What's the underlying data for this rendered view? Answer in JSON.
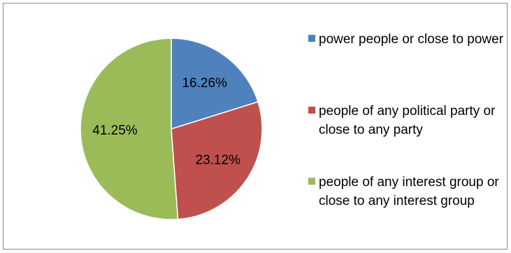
{
  "chart_data": {
    "type": "pie",
    "title": "",
    "slices": [
      {
        "label": "power people or close to power",
        "value": 16.26,
        "display": "16.26%",
        "color": "#4f81bd"
      },
      {
        "label": "people of any political party or close to any party",
        "value": 23.12,
        "display": "23.12%",
        "color": "#c0504d"
      },
      {
        "label": "people of any interest group or close to any interest group",
        "value": 41.25,
        "display": "41.25%",
        "color": "#9bbb59"
      }
    ],
    "legend_position": "right",
    "start_angle_deg": 0,
    "direction": "clockwise"
  }
}
